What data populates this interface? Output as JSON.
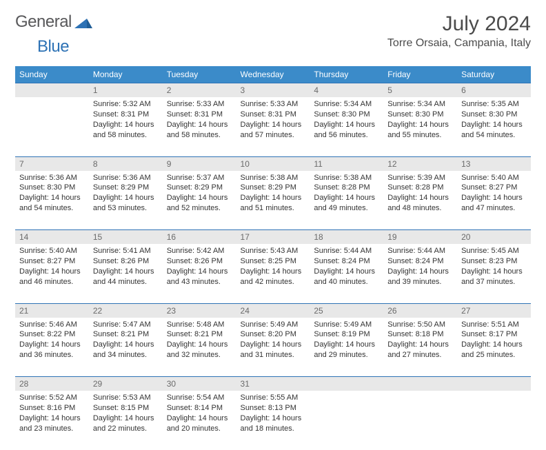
{
  "brand": {
    "name_gray": "General",
    "name_blue": "Blue"
  },
  "title": "July 2024",
  "location": "Torre Orsaia, Campania, Italy",
  "colors": {
    "header_bg": "#3b8bc9",
    "header_fg": "#ffffff",
    "daynum_bg": "#e8e8e8",
    "daynum_fg": "#6a6a6a",
    "rule": "#2d72b5",
    "text": "#333333",
    "title": "#4b4b4b"
  },
  "weekdays": [
    "Sunday",
    "Monday",
    "Tuesday",
    "Wednesday",
    "Thursday",
    "Friday",
    "Saturday"
  ],
  "weeks": [
    {
      "nums": [
        "",
        "1",
        "2",
        "3",
        "4",
        "5",
        "6"
      ],
      "cells": [
        null,
        {
          "sunrise": "Sunrise: 5:32 AM",
          "sunset": "Sunset: 8:31 PM",
          "d1": "Daylight: 14 hours",
          "d2": "and 58 minutes."
        },
        {
          "sunrise": "Sunrise: 5:33 AM",
          "sunset": "Sunset: 8:31 PM",
          "d1": "Daylight: 14 hours",
          "d2": "and 58 minutes."
        },
        {
          "sunrise": "Sunrise: 5:33 AM",
          "sunset": "Sunset: 8:31 PM",
          "d1": "Daylight: 14 hours",
          "d2": "and 57 minutes."
        },
        {
          "sunrise": "Sunrise: 5:34 AM",
          "sunset": "Sunset: 8:30 PM",
          "d1": "Daylight: 14 hours",
          "d2": "and 56 minutes."
        },
        {
          "sunrise": "Sunrise: 5:34 AM",
          "sunset": "Sunset: 8:30 PM",
          "d1": "Daylight: 14 hours",
          "d2": "and 55 minutes."
        },
        {
          "sunrise": "Sunrise: 5:35 AM",
          "sunset": "Sunset: 8:30 PM",
          "d1": "Daylight: 14 hours",
          "d2": "and 54 minutes."
        }
      ]
    },
    {
      "nums": [
        "7",
        "8",
        "9",
        "10",
        "11",
        "12",
        "13"
      ],
      "cells": [
        {
          "sunrise": "Sunrise: 5:36 AM",
          "sunset": "Sunset: 8:30 PM",
          "d1": "Daylight: 14 hours",
          "d2": "and 54 minutes."
        },
        {
          "sunrise": "Sunrise: 5:36 AM",
          "sunset": "Sunset: 8:29 PM",
          "d1": "Daylight: 14 hours",
          "d2": "and 53 minutes."
        },
        {
          "sunrise": "Sunrise: 5:37 AM",
          "sunset": "Sunset: 8:29 PM",
          "d1": "Daylight: 14 hours",
          "d2": "and 52 minutes."
        },
        {
          "sunrise": "Sunrise: 5:38 AM",
          "sunset": "Sunset: 8:29 PM",
          "d1": "Daylight: 14 hours",
          "d2": "and 51 minutes."
        },
        {
          "sunrise": "Sunrise: 5:38 AM",
          "sunset": "Sunset: 8:28 PM",
          "d1": "Daylight: 14 hours",
          "d2": "and 49 minutes."
        },
        {
          "sunrise": "Sunrise: 5:39 AM",
          "sunset": "Sunset: 8:28 PM",
          "d1": "Daylight: 14 hours",
          "d2": "and 48 minutes."
        },
        {
          "sunrise": "Sunrise: 5:40 AM",
          "sunset": "Sunset: 8:27 PM",
          "d1": "Daylight: 14 hours",
          "d2": "and 47 minutes."
        }
      ]
    },
    {
      "nums": [
        "14",
        "15",
        "16",
        "17",
        "18",
        "19",
        "20"
      ],
      "cells": [
        {
          "sunrise": "Sunrise: 5:40 AM",
          "sunset": "Sunset: 8:27 PM",
          "d1": "Daylight: 14 hours",
          "d2": "and 46 minutes."
        },
        {
          "sunrise": "Sunrise: 5:41 AM",
          "sunset": "Sunset: 8:26 PM",
          "d1": "Daylight: 14 hours",
          "d2": "and 44 minutes."
        },
        {
          "sunrise": "Sunrise: 5:42 AM",
          "sunset": "Sunset: 8:26 PM",
          "d1": "Daylight: 14 hours",
          "d2": "and 43 minutes."
        },
        {
          "sunrise": "Sunrise: 5:43 AM",
          "sunset": "Sunset: 8:25 PM",
          "d1": "Daylight: 14 hours",
          "d2": "and 42 minutes."
        },
        {
          "sunrise": "Sunrise: 5:44 AM",
          "sunset": "Sunset: 8:24 PM",
          "d1": "Daylight: 14 hours",
          "d2": "and 40 minutes."
        },
        {
          "sunrise": "Sunrise: 5:44 AM",
          "sunset": "Sunset: 8:24 PM",
          "d1": "Daylight: 14 hours",
          "d2": "and 39 minutes."
        },
        {
          "sunrise": "Sunrise: 5:45 AM",
          "sunset": "Sunset: 8:23 PM",
          "d1": "Daylight: 14 hours",
          "d2": "and 37 minutes."
        }
      ]
    },
    {
      "nums": [
        "21",
        "22",
        "23",
        "24",
        "25",
        "26",
        "27"
      ],
      "cells": [
        {
          "sunrise": "Sunrise: 5:46 AM",
          "sunset": "Sunset: 8:22 PM",
          "d1": "Daylight: 14 hours",
          "d2": "and 36 minutes."
        },
        {
          "sunrise": "Sunrise: 5:47 AM",
          "sunset": "Sunset: 8:21 PM",
          "d1": "Daylight: 14 hours",
          "d2": "and 34 minutes."
        },
        {
          "sunrise": "Sunrise: 5:48 AM",
          "sunset": "Sunset: 8:21 PM",
          "d1": "Daylight: 14 hours",
          "d2": "and 32 minutes."
        },
        {
          "sunrise": "Sunrise: 5:49 AM",
          "sunset": "Sunset: 8:20 PM",
          "d1": "Daylight: 14 hours",
          "d2": "and 31 minutes."
        },
        {
          "sunrise": "Sunrise: 5:49 AM",
          "sunset": "Sunset: 8:19 PM",
          "d1": "Daylight: 14 hours",
          "d2": "and 29 minutes."
        },
        {
          "sunrise": "Sunrise: 5:50 AM",
          "sunset": "Sunset: 8:18 PM",
          "d1": "Daylight: 14 hours",
          "d2": "and 27 minutes."
        },
        {
          "sunrise": "Sunrise: 5:51 AM",
          "sunset": "Sunset: 8:17 PM",
          "d1": "Daylight: 14 hours",
          "d2": "and 25 minutes."
        }
      ]
    },
    {
      "nums": [
        "28",
        "29",
        "30",
        "31",
        "",
        "",
        ""
      ],
      "cells": [
        {
          "sunrise": "Sunrise: 5:52 AM",
          "sunset": "Sunset: 8:16 PM",
          "d1": "Daylight: 14 hours",
          "d2": "and 23 minutes."
        },
        {
          "sunrise": "Sunrise: 5:53 AM",
          "sunset": "Sunset: 8:15 PM",
          "d1": "Daylight: 14 hours",
          "d2": "and 22 minutes."
        },
        {
          "sunrise": "Sunrise: 5:54 AM",
          "sunset": "Sunset: 8:14 PM",
          "d1": "Daylight: 14 hours",
          "d2": "and 20 minutes."
        },
        {
          "sunrise": "Sunrise: 5:55 AM",
          "sunset": "Sunset: 8:13 PM",
          "d1": "Daylight: 14 hours",
          "d2": "and 18 minutes."
        },
        null,
        null,
        null
      ]
    }
  ]
}
